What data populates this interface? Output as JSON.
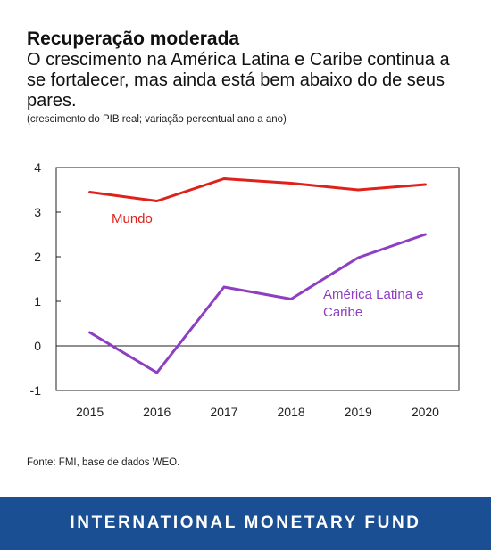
{
  "header": {
    "title": "Recuperação moderada",
    "subtitle": "O crescimento na América Latina e Caribe continua a se fortalecer, mas ainda está bem abaixo do de seus pares.",
    "note": "(crescimento do PIB real; variação percentual ano a ano)"
  },
  "chart_data": {
    "type": "line",
    "x": [
      "2015",
      "2016",
      "2017",
      "2018",
      "2019",
      "2020"
    ],
    "ylim": [
      -1,
      4
    ],
    "yticks": [
      -1,
      0,
      1,
      2,
      3,
      4
    ],
    "grid": false,
    "series": [
      {
        "name": "Mundo",
        "values": [
          3.45,
          3.25,
          3.75,
          3.65,
          3.5,
          3.62
        ],
        "color": "#e0211b"
      },
      {
        "name": "América Latina e Caribe",
        "values": [
          0.3,
          -0.6,
          1.32,
          1.05,
          1.98,
          2.5
        ],
        "color": "#8d3ec3"
      }
    ]
  },
  "source": "Fonte: FMI, base de dados WEO.",
  "footer": {
    "brand": "INTERNATIONAL MONETARY FUND"
  }
}
